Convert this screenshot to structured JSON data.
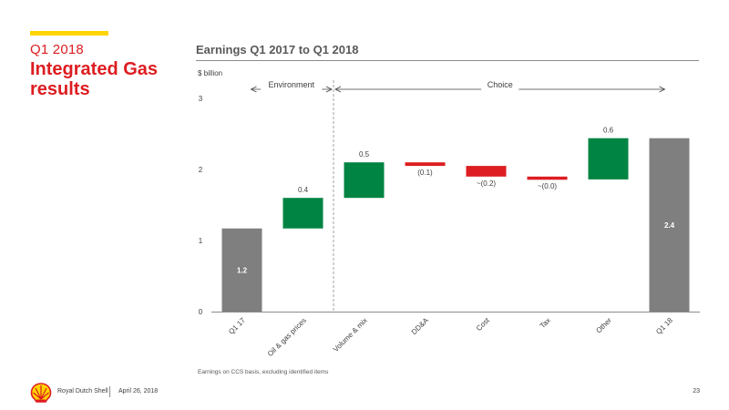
{
  "header": {
    "section_label": "Q1 2018",
    "section_title": "Integrated Gas results"
  },
  "chart_data": {
    "type": "waterfall",
    "title": "Earnings Q1 2017 to Q1 2018",
    "ylabel": "$ billion",
    "ylim": [
      0,
      3
    ],
    "yticks": [
      0,
      1,
      2,
      3
    ],
    "grid": false,
    "categories": [
      "Q1 17",
      "Oil & gas prices",
      "Volume & mix",
      "DD&A",
      "Cost",
      "Tax",
      "Other",
      "Q1 18"
    ],
    "steps": [
      {
        "category": "Q1 17",
        "kind": "total",
        "start": 0,
        "end": 1.17,
        "label": "1.2"
      },
      {
        "category": "Oil & gas prices",
        "kind": "increase",
        "start": 1.17,
        "end": 1.6,
        "label": "0.4"
      },
      {
        "category": "Volume & mix",
        "kind": "increase",
        "start": 1.6,
        "end": 2.1,
        "label": "0.5"
      },
      {
        "category": "DD&A",
        "kind": "decrease",
        "start": 2.1,
        "end": 2.05,
        "label": "(0.1)"
      },
      {
        "category": "Cost",
        "kind": "decrease",
        "start": 2.05,
        "end": 1.9,
        "label": "~(0.2)"
      },
      {
        "category": "Tax",
        "kind": "decrease",
        "start": 1.9,
        "end": 1.86,
        "label": "~(0.0)"
      },
      {
        "category": "Other",
        "kind": "increase",
        "start": 1.86,
        "end": 2.44,
        "label": "0.6"
      },
      {
        "category": "Q1 18",
        "kind": "total",
        "start": 0,
        "end": 2.44,
        "label": "2.4"
      }
    ],
    "annotations": [
      {
        "label": "Environment",
        "from_category": "Q1 17",
        "to_category": "Oil & gas prices"
      },
      {
        "label": "Choice",
        "from_category": "Volume & mix",
        "to_category": "Other"
      }
    ],
    "colors": {
      "total": "#7F7F7F",
      "increase": "#008443",
      "decrease": "#DD1D21",
      "axis": "#8c8c8c",
      "text": "#404040"
    }
  },
  "footer": {
    "note": "Earnings on CCS basis, excluding identified items",
    "company": "Royal Dutch Shell",
    "date": "April 26, 2018",
    "page": "23",
    "logo_icon": "shell-pecten-icon"
  },
  "colors": {
    "accent_yellow": "#FFD500",
    "brand_red": "#DD1D21"
  }
}
